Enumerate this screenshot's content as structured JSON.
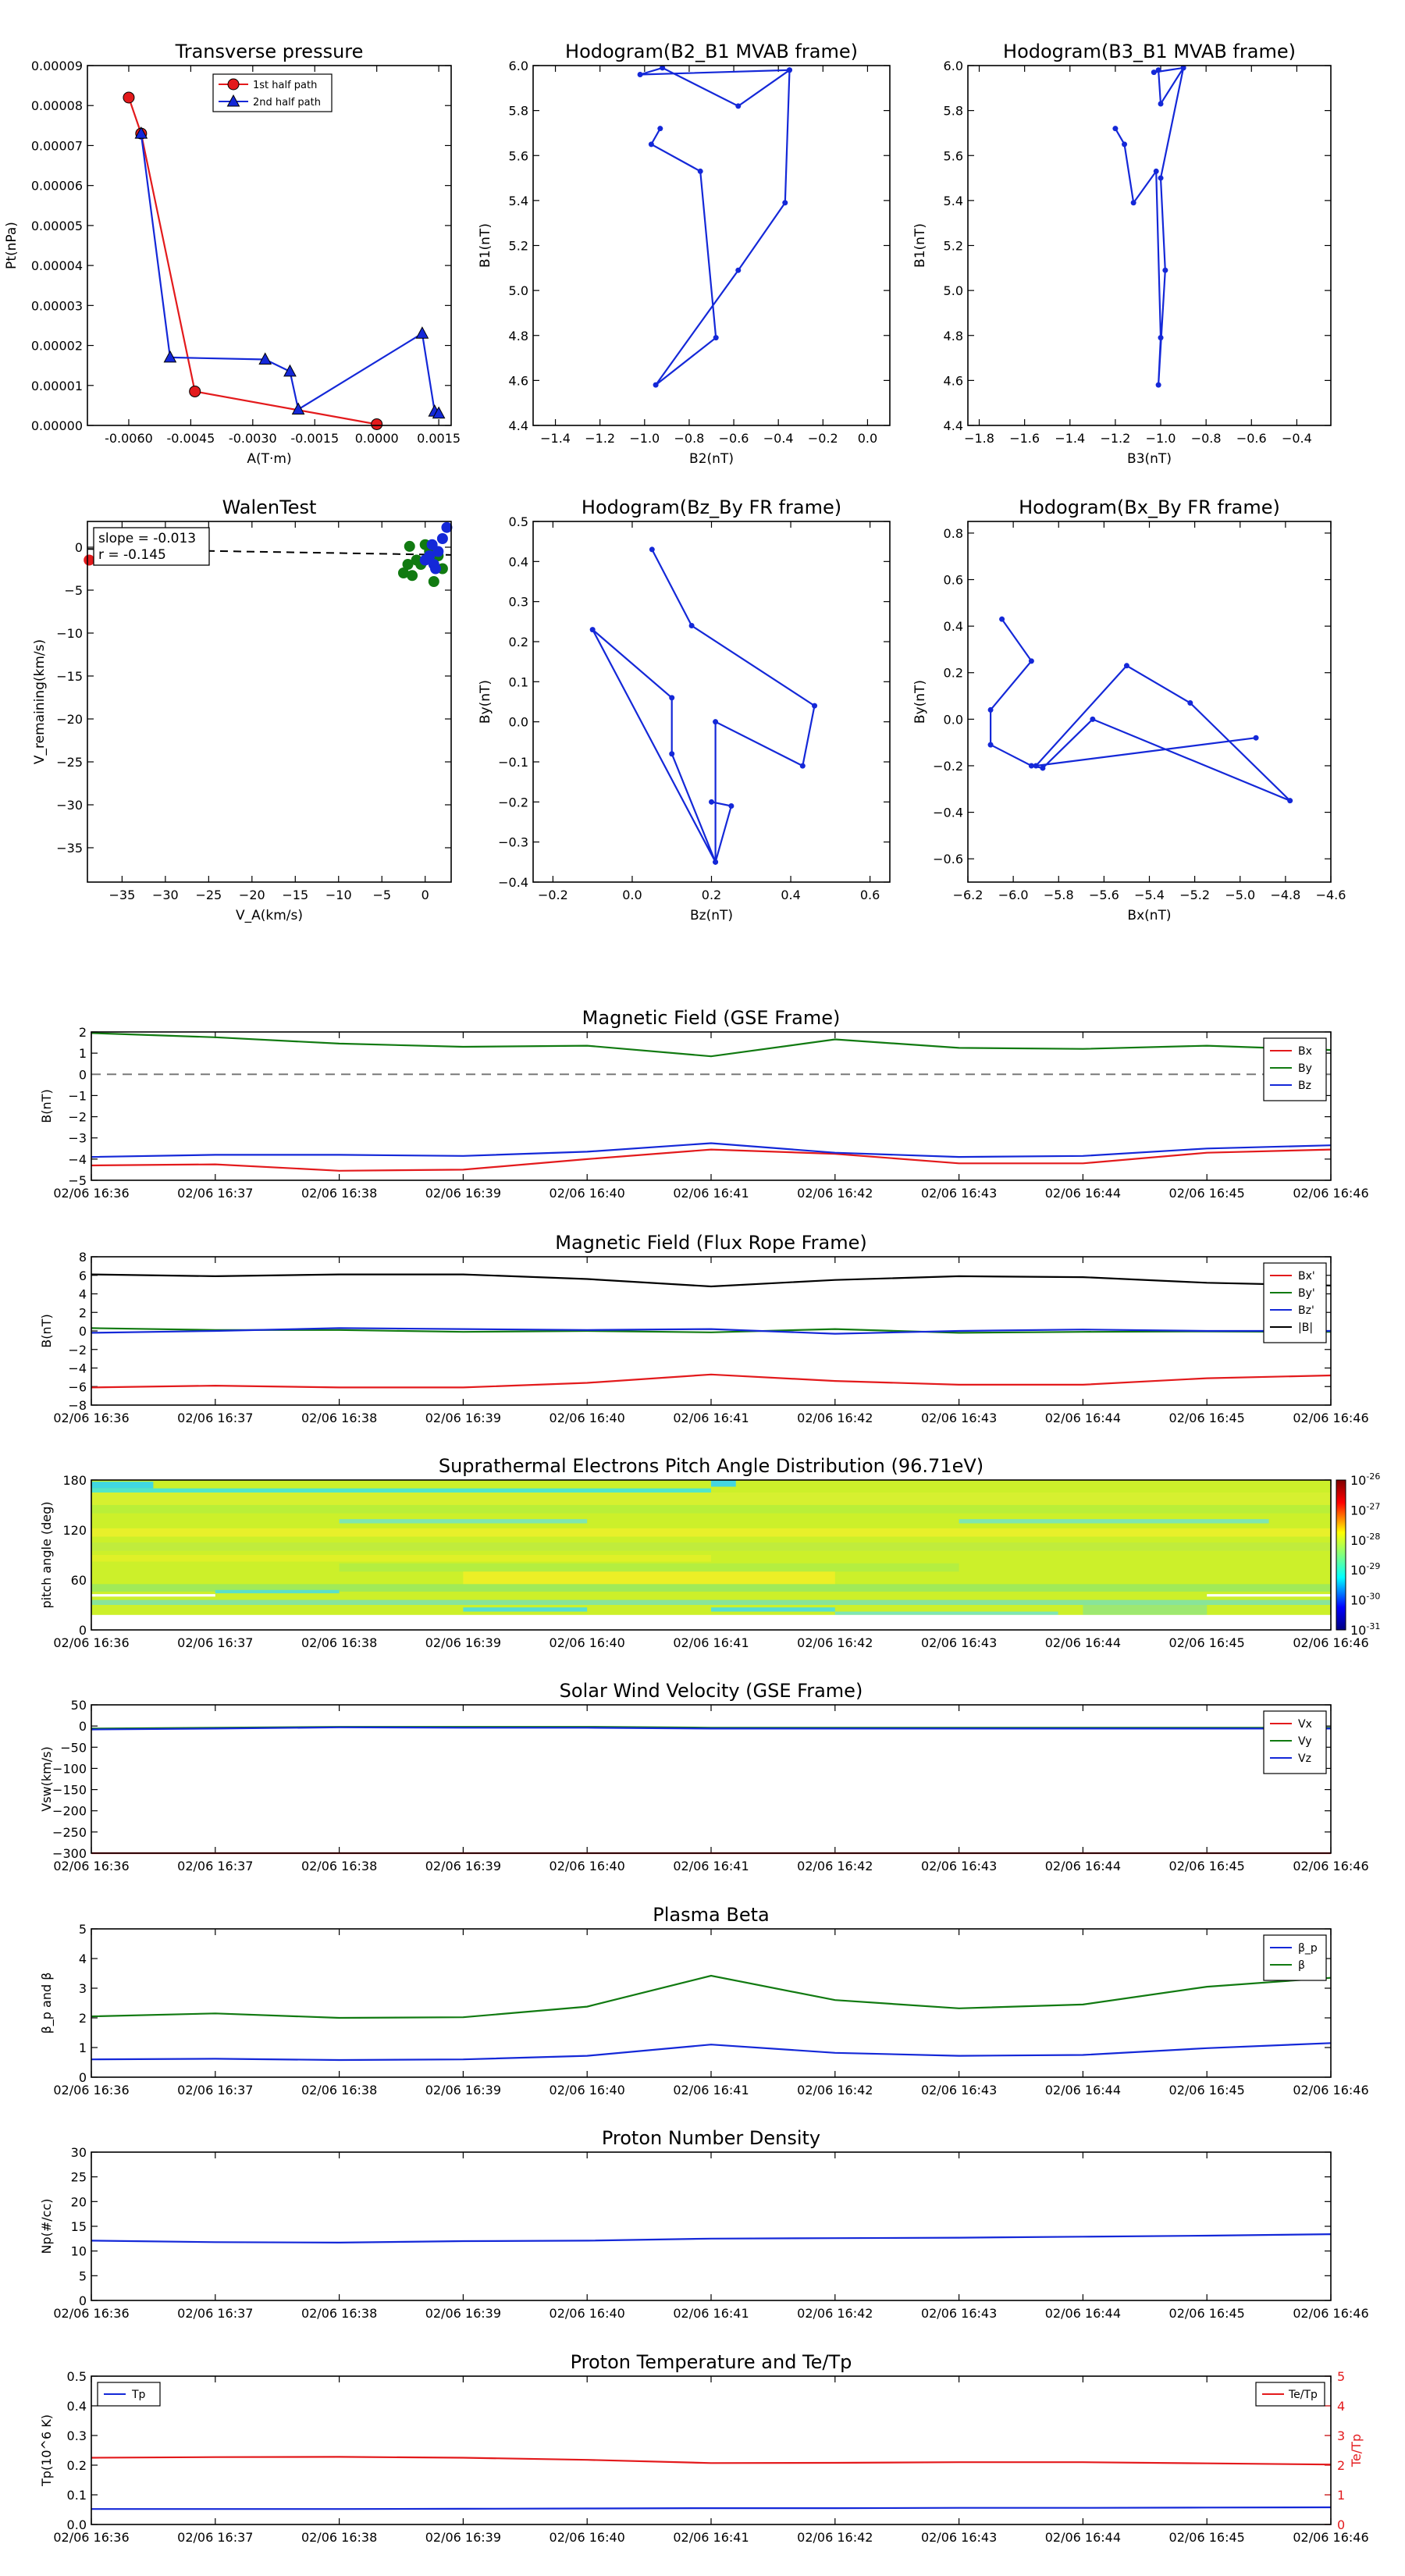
{
  "colors": {
    "red": "#e31a1c",
    "green": "#117a11",
    "blue": "#1428d8",
    "black": "#000000",
    "dash": "#7a7a7a"
  },
  "chart_data": [
    {
      "id": "tp",
      "type": "line",
      "title": "Transverse pressure",
      "xlabel": "A(T·m)",
      "ylabel": "Pt(nPa)",
      "xlim": [
        -0.007,
        0.0018
      ],
      "ylim": [
        0,
        9e-05
      ],
      "xticks": [
        -0.006,
        -0.0045,
        -0.003,
        -0.0015,
        0.0,
        0.0015
      ],
      "xticklabels": [
        "-0.0060",
        "-0.0045",
        "-0.0030",
        "-0.0015",
        "0.0000",
        "0.0015"
      ],
      "yticks": [
        0,
        1e-05,
        2e-05,
        3e-05,
        4e-05,
        5e-05,
        6e-05,
        7e-05,
        8e-05,
        9e-05
      ],
      "yticklabels": [
        "0.00000",
        "0.00001",
        "0.00002",
        "0.00003",
        "0.00004",
        "0.00005",
        "0.00006",
        "0.00007",
        "0.00008",
        "0.00009"
      ],
      "legend": "top-center",
      "series": [
        {
          "name": "1st half path",
          "marker": "circle",
          "color": "red",
          "x": [
            -0.006,
            -0.0057,
            -0.0044,
            0.0
          ],
          "y": [
            8.2e-05,
            7.3e-05,
            8.5e-06,
            3e-07
          ]
        },
        {
          "name": "2nd half path",
          "marker": "triangle",
          "color": "blue",
          "x": [
            -0.0057,
            -0.005,
            -0.0027,
            -0.0021,
            -0.0019,
            0.0011,
            0.0014,
            0.0015
          ],
          "y": [
            7.3e-05,
            1.7e-05,
            1.65e-05,
            1.35e-05,
            4e-06,
            2.3e-05,
            3.5e-06,
            3e-06
          ]
        }
      ]
    },
    {
      "id": "h21",
      "type": "line",
      "title": "Hodogram(B2_B1 MVAB frame)",
      "xlabel": "B2(nT)",
      "ylabel": "B1(nT)",
      "xlim": [
        -1.5,
        0.1
      ],
      "ylim": [
        4.4,
        6.0
      ],
      "xticks": [
        -1.4,
        -1.2,
        -1.0,
        -0.8,
        -0.6,
        -0.4,
        -0.2,
        0.0
      ],
      "xticklabels": [
        "−1.4",
        "−1.2",
        "−1.0",
        "−0.8",
        "−0.6",
        "−0.4",
        "−0.2",
        "0.0"
      ],
      "yticks": [
        4.4,
        4.6,
        4.8,
        5.0,
        5.2,
        5.4,
        5.6,
        5.8,
        6.0
      ],
      "yticklabels": [
        "4.4",
        "4.6",
        "4.8",
        "5.0",
        "5.2",
        "5.4",
        "5.6",
        "5.8",
        "6.0"
      ],
      "series": [
        {
          "name": "hodogram",
          "marker": "dot",
          "color": "blue",
          "x": [
            -0.35,
            -0.58,
            -0.92,
            -1.02,
            -0.35,
            -0.37,
            -0.58,
            -0.95,
            -0.68,
            -0.75,
            -0.97,
            -0.93
          ],
          "y": [
            5.98,
            5.82,
            5.99,
            5.96,
            5.98,
            5.39,
            5.09,
            4.58,
            4.79,
            5.53,
            5.65,
            5.72
          ]
        }
      ]
    },
    {
      "id": "h31",
      "type": "line",
      "title": "Hodogram(B3_B1 MVAB frame)",
      "xlabel": "B3(nT)",
      "ylabel": "B1(nT)",
      "xlim": [
        -1.85,
        -0.25
      ],
      "ylim": [
        4.4,
        6.0
      ],
      "xticks": [
        -1.8,
        -1.6,
        -1.4,
        -1.2,
        -1.0,
        -0.8,
        -0.6,
        -0.4
      ],
      "xticklabels": [
        "−1.8",
        "−1.6",
        "−1.4",
        "−1.2",
        "−1.0",
        "−0.8",
        "−0.6",
        "−0.4"
      ],
      "yticks": [
        4.4,
        4.6,
        4.8,
        5.0,
        5.2,
        5.4,
        5.6,
        5.8,
        6.0
      ],
      "yticklabels": [
        "4.4",
        "4.6",
        "4.8",
        "5.0",
        "5.2",
        "5.4",
        "5.6",
        "5.8",
        "6.0"
      ],
      "series": [
        {
          "name": "hodogram",
          "marker": "dot",
          "color": "blue",
          "x": [
            -0.9,
            -1.0,
            -1.01,
            -1.03,
            -0.9,
            -1.0,
            -0.98,
            -1.01,
            -1.0,
            -1.02,
            -1.12,
            -1.16,
            -1.2
          ],
          "y": [
            5.99,
            5.83,
            5.98,
            5.97,
            5.99,
            5.5,
            5.09,
            4.58,
            4.79,
            5.53,
            5.39,
            5.65,
            5.72
          ]
        }
      ]
    },
    {
      "id": "walen",
      "type": "scatter",
      "title": "WalenTest",
      "xlabel": "V_A(km/s)",
      "ylabel": "V_remaining(km/s)",
      "xlim": [
        -39,
        3
      ],
      "ylim": [
        -39,
        3
      ],
      "xticks": [
        -35,
        -30,
        -25,
        -20,
        -15,
        -10,
        -5,
        0
      ],
      "xticklabels": [
        "−35",
        "−30",
        "−25",
        "−20",
        "−15",
        "−10",
        "−5",
        "0"
      ],
      "yticks": [
        -35,
        -30,
        -25,
        -20,
        -15,
        -10,
        -5,
        0
      ],
      "yticklabels": [
        "−35",
        "−30",
        "−25",
        "−20",
        "−15",
        "−10",
        "−5",
        "0"
      ],
      "annotation": [
        "slope = -0.013",
        "r = -0.145"
      ],
      "fit_line": {
        "x": [
          -39,
          3
        ],
        "y": [
          -0.2,
          -0.9
        ]
      },
      "series": [
        {
          "name": "green",
          "color": "green",
          "x": [
            -2.5,
            -2,
            -1,
            0,
            0.5,
            1,
            -1.5,
            -0.5,
            1.5,
            2,
            -1.8,
            0.8
          ],
          "y": [
            -3,
            -2,
            -1.5,
            0.3,
            -0.5,
            -4,
            -3.3,
            -2,
            -1,
            -2.5,
            0.1,
            0.2
          ]
        },
        {
          "name": "blue",
          "color": "blue",
          "x": [
            0.5,
            1,
            1.5,
            2,
            2.5,
            1.2,
            0.8,
            0
          ],
          "y": [
            -1,
            -2,
            -0.5,
            1,
            2.3,
            -2.5,
            0.3,
            -1.5
          ]
        },
        {
          "name": "red",
          "color": "red",
          "x": [
            -38.8
          ],
          "y": [
            -1.5
          ]
        }
      ]
    },
    {
      "id": "hzy",
      "type": "line",
      "title": "Hodogram(Bz_By FR frame)",
      "xlabel": "Bz(nT)",
      "ylabel": "By(nT)",
      "xlim": [
        -0.25,
        0.65
      ],
      "ylim": [
        -0.4,
        0.5
      ],
      "xticks": [
        -0.2,
        0.0,
        0.2,
        0.4,
        0.6
      ],
      "xticklabels": [
        "−0.2",
        "0.0",
        "0.2",
        "0.4",
        "0.6"
      ],
      "yticks": [
        -0.4,
        -0.3,
        -0.2,
        -0.1,
        0.0,
        0.1,
        0.2,
        0.3,
        0.4,
        0.5
      ],
      "yticklabels": [
        "−0.4",
        "−0.3",
        "−0.2",
        "−0.1",
        "0.0",
        "0.1",
        "0.2",
        "0.3",
        "0.4",
        "0.5"
      ],
      "series": [
        {
          "name": "hodogram",
          "marker": "dot",
          "color": "blue",
          "x": [
            0.05,
            0.15,
            0.46,
            0.43,
            0.21,
            0.21,
            0.1,
            0.1,
            -0.1,
            0.21,
            0.25,
            0.2
          ],
          "y": [
            0.43,
            0.24,
            0.04,
            -0.11,
            0.0,
            -0.35,
            -0.08,
            0.06,
            0.23,
            -0.35,
            -0.21,
            -0.2
          ]
        }
      ]
    },
    {
      "id": "hxy",
      "type": "line",
      "title": "Hodogram(Bx_By FR frame)",
      "xlabel": "Bx(nT)",
      "ylabel": "By(nT)",
      "xlim": [
        -6.2,
        -4.6
      ],
      "ylim": [
        -0.7,
        0.85
      ],
      "xticks": [
        -6.2,
        -6.0,
        -5.8,
        -5.6,
        -5.4,
        -5.2,
        -5.0,
        -4.8,
        -4.6
      ],
      "xticklabels": [
        "−6.2",
        "−6.0",
        "−5.8",
        "−5.6",
        "−5.4",
        "−5.2",
        "−5.0",
        "−4.8",
        "−4.6"
      ],
      "yticks": [
        -0.6,
        -0.4,
        -0.2,
        0.0,
        0.2,
        0.4,
        0.6,
        0.8
      ],
      "yticklabels": [
        "−0.6",
        "−0.4",
        "−0.2",
        "0.0",
        "0.2",
        "0.4",
        "0.6",
        "0.8"
      ],
      "series": [
        {
          "name": "hodogram",
          "marker": "dot",
          "color": "blue",
          "x": [
            -6.05,
            -5.92,
            -6.1,
            -6.1,
            -5.92,
            -5.87,
            -5.65,
            -4.78,
            -5.22,
            -5.5,
            -5.9,
            -4.93
          ],
          "y": [
            0.43,
            0.25,
            0.04,
            -0.11,
            -0.2,
            -0.21,
            0.0,
            -0.35,
            0.07,
            0.23,
            -0.2,
            -0.08
          ]
        }
      ]
    },
    {
      "id": "mag",
      "type": "line",
      "title": "Magnetic Field (GSE Frame)",
      "ylabel": "B(nT)",
      "ylim": [
        -5,
        2
      ],
      "yticks": [
        -5,
        -4,
        -3,
        -2,
        -1,
        0,
        1,
        2
      ],
      "yticklabels": [
        "−5",
        "−4",
        "−3",
        "−2",
        "−1",
        "0",
        "1",
        "2"
      ],
      "x": [
        0,
        1,
        2,
        3,
        4,
        5,
        6,
        7,
        8,
        9,
        10
      ],
      "zero_line": true,
      "legend": "top-right",
      "series": [
        {
          "name": "Bx",
          "color": "red",
          "values": [
            -4.3,
            -4.25,
            -4.55,
            -4.5,
            -4.0,
            -3.55,
            -3.75,
            -4.2,
            -4.2,
            -3.7,
            -3.55
          ]
        },
        {
          "name": "By",
          "color": "green",
          "values": [
            1.95,
            1.75,
            1.45,
            1.3,
            1.35,
            0.85,
            1.65,
            1.25,
            1.2,
            1.35,
            1.15
          ]
        },
        {
          "name": "Bz",
          "color": "blue",
          "values": [
            -3.9,
            -3.8,
            -3.8,
            -3.85,
            -3.65,
            -3.25,
            -3.7,
            -3.9,
            -3.85,
            -3.5,
            -3.35
          ]
        }
      ]
    },
    {
      "id": "magfr",
      "type": "line",
      "title": "Magnetic Field (Flux Rope Frame)",
      "ylabel": "B(nT)",
      "ylim": [
        -8,
        8
      ],
      "yticks": [
        -8,
        -6,
        -4,
        -2,
        0,
        2,
        4,
        6,
        8
      ],
      "yticklabels": [
        "−8",
        "−6",
        "−4",
        "−2",
        "0",
        "2",
        "4",
        "6",
        "8"
      ],
      "x": [
        0,
        1,
        2,
        3,
        4,
        5,
        6,
        7,
        8,
        9,
        10
      ],
      "legend": "top-right",
      "series": [
        {
          "name": "Bx'",
          "color": "red",
          "values": [
            -6.1,
            -5.9,
            -6.1,
            -6.1,
            -5.6,
            -4.7,
            -5.4,
            -5.8,
            -5.8,
            -5.1,
            -4.8
          ]
        },
        {
          "name": "By'",
          "color": "green",
          "values": [
            0.3,
            0.1,
            0.1,
            -0.1,
            0.0,
            -0.15,
            0.2,
            -0.2,
            -0.1,
            -0.05,
            -0.1
          ]
        },
        {
          "name": "Bz'",
          "color": "blue",
          "values": [
            -0.2,
            0.0,
            0.3,
            0.2,
            0.1,
            0.2,
            -0.3,
            0.0,
            0.15,
            0.0,
            0.0
          ]
        },
        {
          "name": "|B|",
          "color": "black",
          "values": [
            6.1,
            5.9,
            6.1,
            6.1,
            5.6,
            4.8,
            5.5,
            5.9,
            5.8,
            5.2,
            4.9
          ]
        }
      ]
    },
    {
      "id": "pad",
      "type": "heatmap",
      "title": "Suprathermal Electrons Pitch Angle Distribution (96.71eV)",
      "ylabel": "pitch angle (deg)",
      "ylim": [
        0,
        180
      ],
      "yticks": [
        0,
        60,
        120,
        180
      ],
      "yticklabels": [
        "0",
        "60",
        "120",
        "180"
      ],
      "colorbar": {
        "ticks": [
          "-31",
          "-30",
          "-29",
          "-28",
          "-27",
          "-26"
        ],
        "base": "10"
      },
      "note": "log10 flux dominated by ~1e-28 (yellow-green) with cyan/white low-flux bands near 20-50 and 150-180 deg"
    },
    {
      "id": "vsw",
      "type": "line",
      "title": "Solar Wind Velocity (GSE Frame)",
      "ylabel": "Vsw(km/s)",
      "ylim": [
        -300,
        50
      ],
      "yticks": [
        -300,
        -250,
        -200,
        -150,
        -100,
        -50,
        0,
        50
      ],
      "yticklabels": [
        "−300",
        "−250",
        "−200",
        "−150",
        "−100",
        "−50",
        "0",
        "50"
      ],
      "x": [
        0,
        1,
        2,
        3,
        4,
        5,
        6,
        7,
        8,
        9,
        10
      ],
      "legend": "top-right",
      "series": [
        {
          "name": "Vx",
          "color": "red",
          "values": [
            -300,
            -300,
            -300,
            -300,
            -300,
            -300,
            -300,
            -300,
            -300,
            -300,
            -300
          ]
        },
        {
          "name": "Vy",
          "color": "green",
          "values": [
            -6,
            -4,
            -2,
            -2,
            -2,
            -4,
            -4,
            -4,
            -4,
            -4,
            -4
          ]
        },
        {
          "name": "Vz",
          "color": "blue",
          "values": [
            -8,
            -6,
            -3,
            -4,
            -4,
            -6,
            -6,
            -6,
            -6,
            -6,
            -6
          ]
        }
      ]
    },
    {
      "id": "beta",
      "type": "line",
      "title": "Plasma Beta",
      "ylabel": "β_p and β",
      "ylim": [
        0,
        5
      ],
      "yticks": [
        0,
        1,
        2,
        3,
        4,
        5
      ],
      "yticklabels": [
        "0",
        "1",
        "2",
        "3",
        "4",
        "5"
      ],
      "x": [
        0,
        1,
        2,
        3,
        4,
        5,
        6,
        7,
        8,
        9,
        10
      ],
      "legend": "top-right",
      "series": [
        {
          "name": "β_p",
          "color": "blue",
          "values": [
            0.6,
            0.62,
            0.58,
            0.6,
            0.72,
            1.1,
            0.82,
            0.72,
            0.75,
            0.98,
            1.15
          ]
        },
        {
          "name": "β",
          "color": "green",
          "values": [
            2.05,
            2.15,
            2.0,
            2.02,
            2.38,
            3.42,
            2.6,
            2.32,
            2.45,
            3.05,
            3.35
          ]
        }
      ]
    },
    {
      "id": "np",
      "type": "line",
      "title": "Proton Number Density",
      "ylabel": "Np(#/cc)",
      "ylim": [
        0,
        30
      ],
      "yticks": [
        0,
        5,
        10,
        15,
        20,
        25,
        30
      ],
      "yticklabels": [
        "0",
        "5",
        "10",
        "15",
        "20",
        "25",
        "30"
      ],
      "x": [
        0,
        1,
        2,
        3,
        4,
        5,
        6,
        7,
        8,
        9,
        10
      ],
      "series": [
        {
          "name": "Np",
          "color": "blue",
          "values": [
            12.1,
            11.8,
            11.7,
            12.0,
            12.1,
            12.5,
            12.6,
            12.7,
            12.9,
            13.1,
            13.4
          ]
        }
      ]
    },
    {
      "id": "tp2",
      "type": "line",
      "title": "Proton Temperature and Te/Tp",
      "ylabel": "Tp(10^6 K)",
      "ylim": [
        0,
        0.5
      ],
      "yticks": [
        0,
        0.1,
        0.2,
        0.3,
        0.4,
        0.5
      ],
      "yticklabels": [
        "0.0",
        "0.1",
        "0.2",
        "0.3",
        "0.4",
        "0.5"
      ],
      "y2label": "Te/Tp",
      "y2lim": [
        0,
        5
      ],
      "y2ticks": [
        0,
        1,
        2,
        3,
        4,
        5
      ],
      "y2ticklabels": [
        "0",
        "1",
        "2",
        "3",
        "4",
        "5"
      ],
      "x": [
        0,
        1,
        2,
        3,
        4,
        5,
        6,
        7,
        8,
        9,
        10
      ],
      "series": [
        {
          "name": "Tp",
          "color": "blue",
          "axis": "left",
          "values": [
            0.052,
            0.052,
            0.052,
            0.053,
            0.054,
            0.055,
            0.055,
            0.056,
            0.056,
            0.057,
            0.058
          ]
        },
        {
          "name": "Te/Tp",
          "color": "red",
          "axis": "right",
          "values": [
            2.25,
            2.27,
            2.28,
            2.25,
            2.18,
            2.07,
            2.08,
            2.1,
            2.1,
            2.06,
            2.02
          ]
        }
      ]
    }
  ],
  "time_ticks": [
    "02/06 16:36",
    "02/06 16:37",
    "02/06 16:38",
    "02/06 16:39",
    "02/06 16:40",
    "02/06 16:41",
    "02/06 16:42",
    "02/06 16:43",
    "02/06 16:44",
    "02/06 16:45",
    "02/06 16:46"
  ]
}
